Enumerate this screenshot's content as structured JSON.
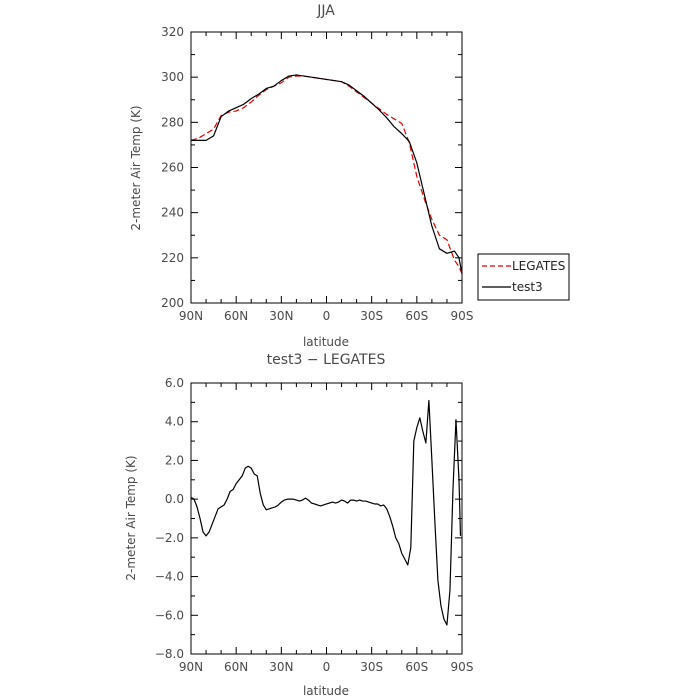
{
  "chart_data": [
    {
      "type": "line",
      "title": "JJA",
      "xlabel": "latitude",
      "ylabel": "2-meter Air Temp (K)",
      "xlim": [
        90,
        -90
      ],
      "ylim": [
        200,
        320
      ],
      "x_ticks": [
        90,
        60,
        30,
        0,
        -30,
        -60,
        -90
      ],
      "x_tick_labels": [
        "90N",
        "60N",
        "30N",
        "0",
        "30S",
        "60S",
        "90S"
      ],
      "y_ticks": [
        200,
        220,
        240,
        260,
        280,
        300,
        320
      ],
      "y_tick_labels": [
        "200",
        "220",
        "240",
        "260",
        "280",
        "300",
        "320"
      ],
      "grid": false,
      "legend_position": "right, outside plot",
      "series": [
        {
          "name": "LEGATES",
          "color": "#e00000",
          "dash": "dashed",
          "x": [
            90,
            85,
            80,
            75,
            70,
            65,
            60,
            55,
            50,
            45,
            40,
            35,
            30,
            25,
            20,
            15,
            10,
            5,
            0,
            -5,
            -10,
            -15,
            -20,
            -25,
            -30,
            -35,
            -40,
            -45,
            -50,
            -55,
            -60,
            -65,
            -70,
            -75,
            -80,
            -85,
            -88,
            -90
          ],
          "y": [
            272,
            273,
            275,
            277,
            283,
            284.5,
            285,
            286.5,
            289,
            292,
            294.5,
            296,
            297.5,
            300,
            300.5,
            300.5,
            300,
            299.5,
            299,
            298.5,
            298,
            296,
            293.5,
            291,
            288.5,
            286,
            283.5,
            281.5,
            279.5,
            271,
            256,
            246,
            237,
            230,
            228,
            219,
            216,
            213
          ]
        },
        {
          "name": "test3",
          "color": "#000000",
          "dash": "solid",
          "x": [
            90,
            85,
            80,
            75,
            70,
            65,
            60,
            55,
            50,
            45,
            40,
            35,
            30,
            25,
            20,
            15,
            10,
            5,
            0,
            -5,
            -10,
            -15,
            -20,
            -25,
            -30,
            -35,
            -40,
            -45,
            -50,
            -55,
            -60,
            -65,
            -70,
            -75,
            -80,
            -85,
            -88,
            -90
          ],
          "y": [
            272,
            272,
            272,
            274,
            282.5,
            285,
            286.5,
            288,
            290.5,
            292.5,
            295,
            296,
            298.5,
            300.5,
            301,
            300.5,
            300,
            299.5,
            299,
            298.5,
            298,
            296.5,
            294,
            291.5,
            288.5,
            285.5,
            282,
            278,
            275,
            271.5,
            262,
            248,
            234,
            224,
            222,
            223,
            220,
            213
          ]
        }
      ]
    },
    {
      "type": "line",
      "title": "test3 − LEGATES",
      "xlabel": "latitude",
      "ylabel": "2-meter Air Temp (K)",
      "xlim": [
        90,
        -90
      ],
      "ylim": [
        -8,
        6
      ],
      "x_ticks": [
        90,
        60,
        30,
        0,
        -30,
        -60,
        -90
      ],
      "x_tick_labels": [
        "90N",
        "60N",
        "30N",
        "0",
        "30S",
        "60S",
        "90S"
      ],
      "y_ticks": [
        -8,
        -6,
        -4,
        -2,
        0,
        2,
        4,
        6
      ],
      "y_tick_labels": [
        "−8.0",
        "−6.0",
        "−4.0",
        "−2.0",
        "0.0",
        "2.0",
        "4.0",
        "6.0"
      ],
      "grid": false,
      "series": [
        {
          "color": "#000000",
          "dash": "solid",
          "x": [
            90,
            88,
            86,
            84,
            82,
            80,
            78,
            76,
            74,
            72,
            70,
            68,
            66,
            64,
            62,
            60,
            58,
            56,
            54,
            52,
            50,
            48,
            46,
            44,
            42,
            40,
            38,
            36,
            34,
            32,
            30,
            28,
            26,
            24,
            22,
            20,
            18,
            16,
            14,
            12,
            10,
            8,
            6,
            4,
            2,
            0,
            -2,
            -4,
            -6,
            -8,
            -10,
            -12,
            -14,
            -16,
            -18,
            -20,
            -22,
            -24,
            -26,
            -28,
            -30,
            -32,
            -34,
            -36,
            -38,
            -40,
            -42,
            -44,
            -46,
            -48,
            -50,
            -52,
            -54,
            -56,
            -58,
            -60,
            -62,
            -64,
            -66,
            -68,
            -70,
            -72,
            -74,
            -76,
            -78,
            -80,
            -82,
            -84,
            -86,
            -88,
            -89
          ],
          "y": [
            0.1,
            0,
            -0.4,
            -1.0,
            -1.7,
            -1.9,
            -1.7,
            -1.3,
            -0.9,
            -0.5,
            -0.4,
            -0.3,
            0.0,
            0.4,
            0.5,
            0.8,
            1.0,
            1.2,
            1.6,
            1.7,
            1.6,
            1.3,
            1.2,
            0.3,
            -0.3,
            -0.55,
            -0.5,
            -0.45,
            -0.4,
            -0.3,
            -0.15,
            -0.05,
            0.0,
            0.0,
            0.0,
            -0.05,
            -0.1,
            -0.05,
            0.05,
            -0.05,
            -0.2,
            -0.25,
            -0.3,
            -0.35,
            -0.3,
            -0.25,
            -0.2,
            -0.15,
            -0.2,
            -0.15,
            -0.05,
            -0.1,
            -0.2,
            -0.05,
            -0.05,
            -0.1,
            -0.05,
            -0.1,
            -0.1,
            -0.15,
            -0.2,
            -0.25,
            -0.25,
            -0.35,
            -0.3,
            -0.5,
            -0.9,
            -1.4,
            -2.0,
            -2.3,
            -2.8,
            -3.1,
            -3.4,
            -2.5,
            3.0,
            3.7,
            4.2,
            3.5,
            2.9,
            5.1,
            2.0,
            -1.2,
            -4.2,
            -5.5,
            -6.2,
            -6.5,
            -4.7,
            0.5,
            4.1,
            1.0,
            -1.9
          ]
        }
      ]
    }
  ]
}
